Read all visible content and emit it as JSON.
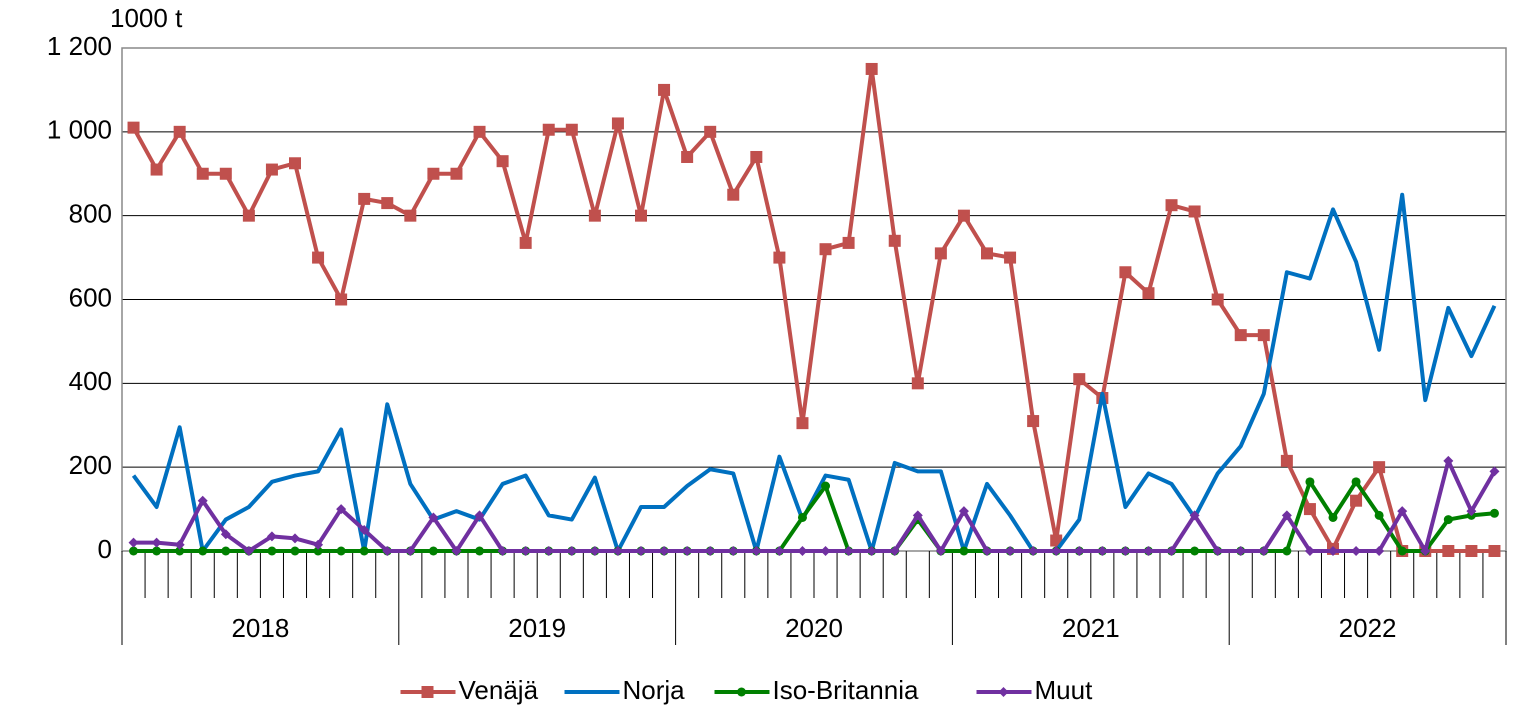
{
  "chart_data": {
    "type": "line",
    "unit_label": "1000 t",
    "categories": [
      null,
      null,
      null,
      null,
      null,
      null,
      null,
      null,
      null,
      null,
      null,
      null,
      null,
      null,
      null,
      null,
      null,
      null,
      null,
      null,
      null,
      null,
      null,
      null,
      null,
      null,
      null,
      null,
      null,
      null,
      null,
      null,
      null,
      null,
      null,
      null,
      null,
      null,
      null,
      null,
      null,
      null,
      null,
      null,
      null,
      null,
      null,
      null,
      null,
      null,
      null,
      null,
      null,
      null,
      null,
      null,
      null,
      null,
      null,
      null
    ],
    "groups": [
      "2018",
      "2019",
      "2020",
      "2021",
      "2022"
    ],
    "ylim": [
      0,
      1200
    ],
    "yticks": [
      0,
      200,
      400,
      600,
      800,
      {
        "value": 1000,
        "label": "1 000"
      },
      {
        "value": 1200,
        "label": "1 200"
      }
    ],
    "grid": true,
    "legend": "bottom",
    "series": [
      {
        "name": "Venäjä",
        "color": "#c0504d",
        "marker": "square",
        "values": [
          1010,
          910,
          1000,
          900,
          900,
          800,
          910,
          925,
          700,
          600,
          840,
          830,
          800,
          900,
          900,
          1000,
          930,
          735,
          1005,
          1005,
          800,
          1020,
          800,
          1100,
          940,
          1000,
          850,
          940,
          700,
          305,
          720,
          735,
          1150,
          740,
          400,
          710,
          800,
          710,
          700,
          310,
          25,
          410,
          365,
          665,
          615,
          825,
          810,
          600,
          515,
          515,
          215,
          100,
          5,
          120,
          200,
          0,
          0,
          0,
          0,
          0
        ]
      },
      {
        "name": "Norja",
        "color": "#0070c0",
        "marker": "none",
        "values": [
          180,
          105,
          295,
          0,
          75,
          105,
          165,
          180,
          190,
          290,
          0,
          350,
          160,
          75,
          95,
          75,
          160,
          180,
          85,
          75,
          175,
          0,
          105,
          105,
          155,
          195,
          185,
          0,
          225,
          75,
          180,
          170,
          0,
          210,
          190,
          190,
          0,
          160,
          85,
          0,
          0,
          75,
          375,
          105,
          185,
          160,
          80,
          185,
          250,
          375,
          665,
          650,
          815,
          690,
          480,
          850,
          360,
          580,
          465,
          585
        ]
      },
      {
        "name": "Iso-Britannia",
        "color": "#008000",
        "marker": "circle",
        "values": [
          0,
          0,
          0,
          0,
          0,
          0,
          0,
          0,
          0,
          0,
          0,
          0,
          0,
          0,
          0,
          0,
          0,
          0,
          0,
          0,
          0,
          0,
          0,
          0,
          0,
          0,
          0,
          0,
          0,
          80,
          155,
          0,
          0,
          0,
          75,
          0,
          0,
          0,
          0,
          0,
          0,
          0,
          0,
          0,
          0,
          0,
          0,
          0,
          0,
          0,
          0,
          165,
          80,
          165,
          85,
          0,
          0,
          75,
          85,
          90
        ]
      },
      {
        "name": "Muut",
        "color": "#7030a0",
        "marker": "diamond",
        "values": [
          20,
          20,
          15,
          120,
          40,
          0,
          35,
          30,
          15,
          100,
          50,
          0,
          0,
          80,
          0,
          85,
          0,
          0,
          0,
          0,
          0,
          0,
          0,
          0,
          0,
          0,
          0,
          0,
          0,
          0,
          0,
          0,
          0,
          0,
          85,
          0,
          95,
          0,
          0,
          0,
          0,
          0,
          0,
          0,
          0,
          0,
          85,
          0,
          0,
          0,
          85,
          0,
          0,
          0,
          0,
          95,
          0,
          215,
          95,
          190
        ]
      }
    ]
  }
}
